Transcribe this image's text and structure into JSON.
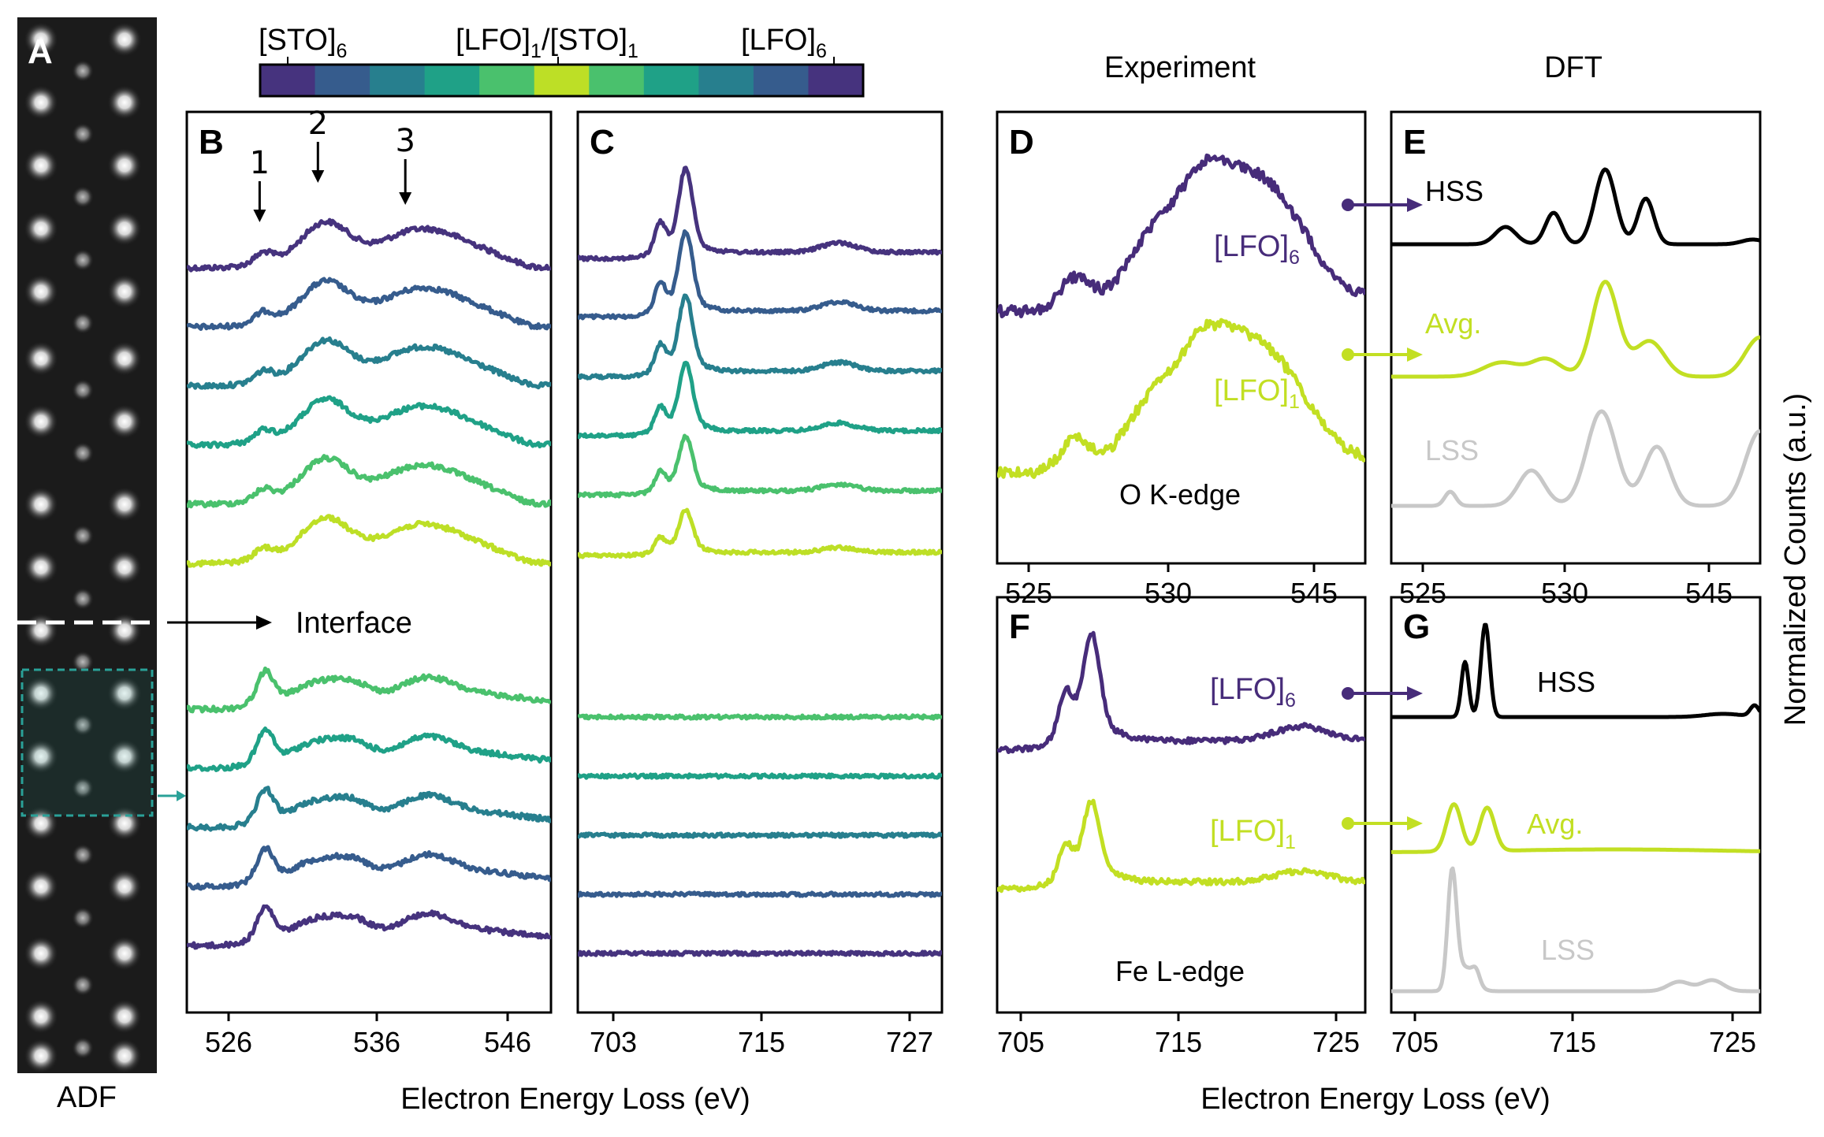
{
  "figure": {
    "adf_label": "ADF",
    "interface_label": "Interface",
    "colorbar": {
      "labels": [
        {
          "key": "sto6",
          "text": "[STO]",
          "sub": "6"
        },
        {
          "key": "mid",
          "text": "[LFO]",
          "sub": "1",
          "text2": "/[STO]",
          "sub2": "1"
        },
        {
          "key": "lfo6",
          "text": "[LFO]",
          "sub": "6"
        }
      ],
      "colors": [
        "#46337e",
        "#365c8d",
        "#277f8e",
        "#1fa187",
        "#4ac16d",
        "#bddf26",
        "#4ac16d",
        "#1fa187",
        "#277f8e",
        "#365c8d",
        "#46337e"
      ]
    },
    "column_titles": {
      "experiment": "Experiment",
      "dft": "DFT"
    },
    "xlabel_left": "Electron Energy Loss (eV)",
    "xlabel_right": "Electron Energy Loss (eV)",
    "ylabel_right": "Normalized Counts (a.u.)"
  },
  "panels": {
    "A": {
      "letter": "A"
    },
    "B": {
      "letter": "B",
      "arrows": [
        {
          "label": "1",
          "x": 529
        },
        {
          "label": "2",
          "x": 533
        },
        {
          "label": "3",
          "x": 539
        }
      ],
      "ticks": [
        "526",
        "536",
        "546"
      ],
      "edge": "O K"
    },
    "C": {
      "letter": "C",
      "ticks": [
        "703",
        "715",
        "727"
      ],
      "edge": "Fe L"
    },
    "D": {
      "letter": "D",
      "ticks": [
        "525",
        "530",
        "545"
      ],
      "edge_label": "O K-edge",
      "series_labels": [
        {
          "text": "[LFO]",
          "sub": "6"
        },
        {
          "text": "[LFO]",
          "sub": "1"
        }
      ]
    },
    "E": {
      "letter": "E",
      "ticks": [
        "525",
        "530",
        "545"
      ],
      "series_labels": [
        "HSS",
        "Avg.",
        "LSS"
      ]
    },
    "F": {
      "letter": "F",
      "ticks": [
        "705",
        "715",
        "725"
      ],
      "edge_label": "Fe L-edge",
      "series_labels": [
        {
          "text": "[LFO]",
          "sub": "6"
        },
        {
          "text": "[LFO]",
          "sub": "1"
        }
      ]
    },
    "G": {
      "letter": "G",
      "ticks": [
        "705",
        "715",
        "725"
      ],
      "series_labels": [
        "HSS",
        "Avg.",
        "LSS"
      ]
    }
  },
  "colors": {
    "purple": "#472c7a",
    "lime": "#c2df23",
    "black": "#000000",
    "gray": "#c8c8c8",
    "teal_box": "#2aa198"
  },
  "chart_data": [
    {
      "panel": "B",
      "type": "line",
      "xlabel": "Electron Energy Loss (eV)",
      "xlim": [
        524,
        549
      ],
      "series": [
        {
          "color": "#46337e",
          "group": "above"
        },
        {
          "color": "#365c8d",
          "group": "above"
        },
        {
          "color": "#277f8e",
          "group": "above"
        },
        {
          "color": "#1fa187",
          "group": "above"
        },
        {
          "color": "#4ac16d",
          "group": "above"
        },
        {
          "color": "#bddf26",
          "group": "above"
        },
        {
          "color": "#4ac16d",
          "group": "below"
        },
        {
          "color": "#1fa187",
          "group": "below"
        },
        {
          "color": "#277f8e",
          "group": "below"
        },
        {
          "color": "#365c8d",
          "group": "below"
        },
        {
          "color": "#46337e",
          "group": "below"
        }
      ]
    },
    {
      "panel": "C",
      "type": "line",
      "xlabel": "Electron Energy Loss (eV)",
      "xlim": [
        700,
        730
      ],
      "series": [
        {
          "color": "#46337e",
          "group": "above"
        },
        {
          "color": "#365c8d",
          "group": "above"
        },
        {
          "color": "#277f8e",
          "group": "above"
        },
        {
          "color": "#1fa187",
          "group": "above"
        },
        {
          "color": "#4ac16d",
          "group": "above"
        },
        {
          "color": "#bddf26",
          "group": "above"
        },
        {
          "color": "#4ac16d",
          "group": "below"
        },
        {
          "color": "#1fa187",
          "group": "below"
        },
        {
          "color": "#277f8e",
          "group": "below"
        },
        {
          "color": "#365c8d",
          "group": "below"
        },
        {
          "color": "#46337e",
          "group": "below"
        }
      ]
    },
    {
      "panel": "D",
      "type": "line",
      "series": [
        {
          "name": "[LFO]6",
          "color": "#472c7a"
        },
        {
          "name": "[LFO]1",
          "color": "#c2df23"
        }
      ]
    },
    {
      "panel": "E",
      "type": "line",
      "series": [
        {
          "name": "HSS",
          "color": "#000000"
        },
        {
          "name": "Avg.",
          "color": "#c2df23"
        },
        {
          "name": "LSS",
          "color": "#c8c8c8"
        }
      ]
    },
    {
      "panel": "F",
      "type": "line",
      "series": [
        {
          "name": "[LFO]6",
          "color": "#472c7a"
        },
        {
          "name": "[LFO]1",
          "color": "#c2df23"
        }
      ]
    },
    {
      "panel": "G",
      "type": "line",
      "series": [
        {
          "name": "HSS",
          "color": "#000000"
        },
        {
          "name": "Avg.",
          "color": "#c2df23"
        },
        {
          "name": "LSS",
          "color": "#c8c8c8"
        }
      ]
    }
  ]
}
